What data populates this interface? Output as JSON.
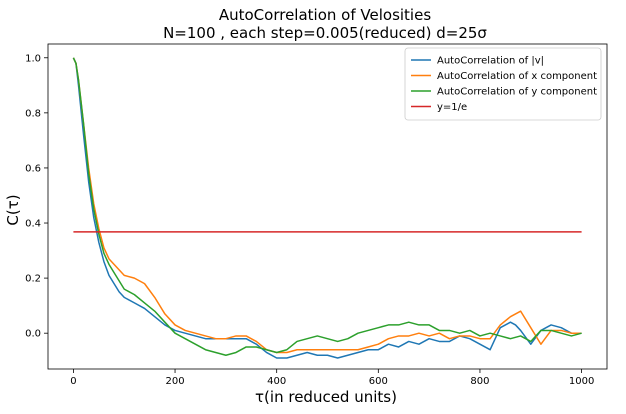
{
  "chart_data": {
    "type": "line",
    "title": "AutoCorrelation of Velosities",
    "subtitle": "N=100 , each step=0.005(reduced) d=25σ",
    "xlabel": "τ(in reduced units)",
    "ylabel": "C(τ)",
    "xlim": [
      -50,
      1050
    ],
    "ylim": [
      -0.13,
      1.05
    ],
    "xticks": [
      0,
      200,
      400,
      600,
      800,
      1000
    ],
    "yticks": [
      0.0,
      0.2,
      0.4,
      0.6,
      0.8,
      1.0
    ],
    "xtick_labels": [
      "0",
      "200",
      "400",
      "600",
      "800",
      "1000"
    ],
    "ytick_labels": [
      "0.0",
      "0.2",
      "0.4",
      "0.6",
      "0.8",
      "1.0"
    ],
    "grid": false,
    "legend_position": "top-right",
    "series": [
      {
        "name": "AutoCorrelation of |v|",
        "color": "#1f77b4",
        "x": [
          0,
          5,
          10,
          20,
          30,
          40,
          50,
          60,
          70,
          80,
          90,
          100,
          120,
          140,
          160,
          180,
          200,
          220,
          240,
          260,
          280,
          300,
          320,
          340,
          360,
          380,
          400,
          420,
          440,
          460,
          480,
          500,
          520,
          540,
          560,
          580,
          600,
          620,
          640,
          660,
          680,
          700,
          720,
          740,
          760,
          780,
          800,
          820,
          840,
          860,
          870,
          880,
          900,
          920,
          940,
          960,
          980,
          1000
        ],
        "y": [
          1.0,
          0.98,
          0.9,
          0.72,
          0.55,
          0.42,
          0.33,
          0.26,
          0.21,
          0.18,
          0.15,
          0.13,
          0.11,
          0.09,
          0.06,
          0.03,
          0.01,
          0.0,
          -0.01,
          -0.02,
          -0.02,
          -0.02,
          -0.02,
          -0.02,
          -0.04,
          -0.07,
          -0.09,
          -0.09,
          -0.08,
          -0.07,
          -0.08,
          -0.08,
          -0.09,
          -0.08,
          -0.07,
          -0.06,
          -0.06,
          -0.04,
          -0.05,
          -0.03,
          -0.04,
          -0.02,
          -0.03,
          -0.03,
          -0.01,
          -0.02,
          -0.04,
          -0.06,
          0.02,
          0.04,
          0.03,
          0.01,
          -0.04,
          0.01,
          0.03,
          0.02,
          0.0,
          0.0
        ]
      },
      {
        "name": "AutoCorrelation of x component",
        "color": "#ff7f0e",
        "x": [
          0,
          5,
          10,
          20,
          30,
          40,
          50,
          60,
          70,
          80,
          90,
          100,
          120,
          140,
          160,
          180,
          200,
          220,
          240,
          260,
          280,
          300,
          320,
          340,
          360,
          380,
          400,
          420,
          440,
          460,
          480,
          500,
          520,
          540,
          560,
          580,
          600,
          620,
          640,
          660,
          680,
          700,
          720,
          740,
          760,
          780,
          800,
          820,
          840,
          860,
          880,
          900,
          920,
          940,
          960,
          980,
          1000
        ],
        "y": [
          1.0,
          0.98,
          0.92,
          0.76,
          0.6,
          0.47,
          0.38,
          0.31,
          0.27,
          0.25,
          0.23,
          0.21,
          0.2,
          0.18,
          0.13,
          0.07,
          0.03,
          0.01,
          0.0,
          -0.01,
          -0.02,
          -0.02,
          -0.01,
          -0.01,
          -0.03,
          -0.06,
          -0.07,
          -0.07,
          -0.06,
          -0.06,
          -0.06,
          -0.06,
          -0.06,
          -0.06,
          -0.06,
          -0.05,
          -0.04,
          -0.02,
          -0.01,
          -0.01,
          0.0,
          -0.01,
          0.0,
          -0.02,
          -0.01,
          -0.01,
          -0.02,
          -0.02,
          0.03,
          0.06,
          0.08,
          0.02,
          -0.04,
          0.01,
          0.01,
          0.0,
          0.0
        ]
      },
      {
        "name": "AutoCorrelation of y component",
        "color": "#2ca02c",
        "x": [
          0,
          5,
          10,
          20,
          30,
          40,
          50,
          60,
          70,
          80,
          90,
          100,
          120,
          140,
          160,
          180,
          200,
          220,
          240,
          260,
          280,
          300,
          320,
          340,
          360,
          380,
          400,
          420,
          440,
          460,
          480,
          500,
          520,
          540,
          560,
          580,
          600,
          620,
          640,
          660,
          680,
          700,
          720,
          740,
          760,
          780,
          800,
          820,
          840,
          860,
          880,
          900,
          920,
          940,
          960,
          980,
          1000
        ],
        "y": [
          1.0,
          0.98,
          0.92,
          0.76,
          0.58,
          0.45,
          0.36,
          0.29,
          0.25,
          0.22,
          0.19,
          0.16,
          0.14,
          0.11,
          0.08,
          0.04,
          0.0,
          -0.02,
          -0.04,
          -0.06,
          -0.07,
          -0.08,
          -0.07,
          -0.05,
          -0.05,
          -0.06,
          -0.07,
          -0.06,
          -0.03,
          -0.02,
          -0.01,
          -0.02,
          -0.03,
          -0.02,
          0.0,
          0.01,
          0.02,
          0.03,
          0.03,
          0.04,
          0.03,
          0.03,
          0.01,
          0.01,
          0.0,
          0.01,
          -0.01,
          0.0,
          -0.01,
          -0.02,
          -0.01,
          -0.03,
          0.01,
          0.01,
          0.0,
          -0.01,
          0.0
        ]
      },
      {
        "name": "y=1/e",
        "color": "#d62728",
        "x": [
          0,
          1000
        ],
        "y": [
          0.3679,
          0.3679
        ]
      }
    ]
  }
}
